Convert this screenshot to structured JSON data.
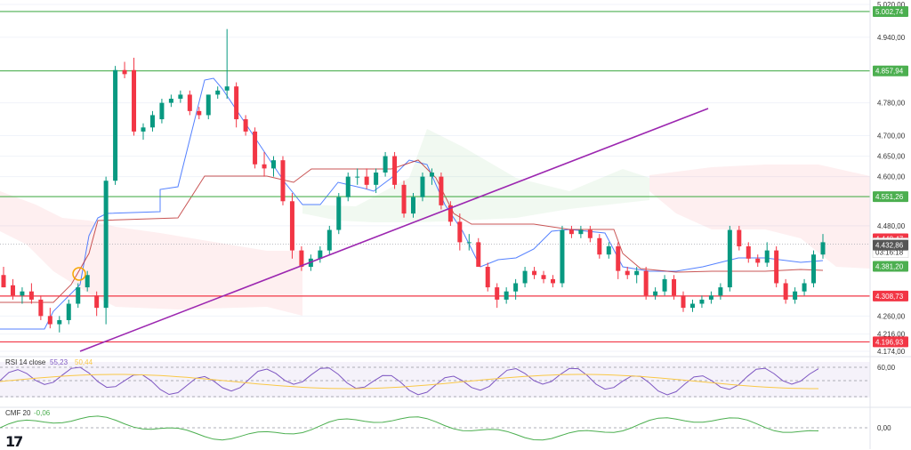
{
  "chart_data": {
    "type": "candlestick",
    "price_axis": {
      "ticks": [
        "5.020,00",
        "4.940,00",
        "4.780,00",
        "4.700,00",
        "4.650,00",
        "4.600,00",
        "4.480,00",
        "4.260,00",
        "4.216,00",
        "4.174,00"
      ],
      "ylim": [
        4174,
        5020
      ]
    },
    "horizontal_levels": [
      {
        "value": 5002.74,
        "label": "5.002,74",
        "color": "#4caf50"
      },
      {
        "value": 4857.94,
        "label": "4.857,94",
        "color": "#4caf50"
      },
      {
        "value": 4551.26,
        "label": "4.551,26",
        "color": "#4caf50"
      },
      {
        "value": 4308.73,
        "label": "4.308,73",
        "color": "#f23645"
      },
      {
        "value": 4196.93,
        "label": "4.196,93",
        "color": "#f23645"
      }
    ],
    "price_tags": [
      {
        "value": 4448.47,
        "label": "4.448,47",
        "color": "#f23645"
      },
      {
        "value": 4435.27,
        "label": "4.435,27",
        "sub": "03:16:18",
        "color": "#ffffff"
      },
      {
        "value": 4432.86,
        "label": "4.432,86",
        "color": "#555555"
      },
      {
        "value": 4381.2,
        "label": "4.381,20",
        "color": "#4caf50"
      }
    ],
    "candles": [
      [
        4360,
        4380,
        4330,
        4330
      ],
      [
        4335,
        4350,
        4300,
        4310
      ],
      [
        4310,
        4330,
        4290,
        4320
      ],
      [
        4320,
        4340,
        4290,
        4300
      ],
      [
        4300,
        4310,
        4250,
        4260
      ],
      [
        4260,
        4280,
        4230,
        4240
      ],
      [
        4240,
        4260,
        4220,
        4250
      ],
      [
        4250,
        4300,
        4240,
        4290
      ],
      [
        4290,
        4340,
        4280,
        4330
      ],
      [
        4330,
        4370,
        4320,
        4360
      ],
      [
        4310,
        4320,
        4260,
        4280
      ],
      [
        4280,
        4600,
        4240,
        4590
      ],
      [
        4590,
        4870,
        4580,
        4860
      ],
      [
        4860,
        4880,
        4840,
        4850
      ],
      [
        4860,
        4890,
        4700,
        4710
      ],
      [
        4710,
        4730,
        4690,
        4720
      ],
      [
        4720,
        4760,
        4710,
        4750
      ],
      [
        4740,
        4790,
        4730,
        4780
      ],
      [
        4780,
        4800,
        4770,
        4790
      ],
      [
        4790,
        4810,
        4780,
        4800
      ],
      [
        4800,
        4810,
        4750,
        4760
      ],
      [
        4760,
        4770,
        4740,
        4750
      ],
      [
        4750,
        4800,
        4740,
        4800
      ],
      [
        4800,
        4820,
        4790,
        4810
      ],
      [
        4810,
        4960,
        4790,
        4820
      ],
      [
        4820,
        4830,
        4720,
        4740
      ],
      [
        4740,
        4750,
        4700,
        4710
      ],
      [
        4710,
        4720,
        4620,
        4630
      ],
      [
        4630,
        4660,
        4600,
        4620
      ],
      [
        4620,
        4650,
        4600,
        4640
      ],
      [
        4640,
        4650,
        4530,
        4540
      ],
      [
        4540,
        4560,
        4400,
        4420
      ],
      [
        4420,
        4430,
        4370,
        4380
      ],
      [
        4380,
        4410,
        4370,
        4400
      ],
      [
        4400,
        4430,
        4390,
        4420
      ],
      [
        4420,
        4480,
        4410,
        4470
      ],
      [
        4470,
        4560,
        4460,
        4550
      ],
      [
        4550,
        4610,
        4540,
        4600
      ],
      [
        4600,
        4620,
        4580,
        4600
      ],
      [
        4600,
        4620,
        4570,
        4580
      ],
      [
        4580,
        4620,
        4560,
        4610
      ],
      [
        4610,
        4660,
        4600,
        4650
      ],
      [
        4650,
        4660,
        4570,
        4580
      ],
      [
        4580,
        4590,
        4500,
        4510
      ],
      [
        4510,
        4560,
        4500,
        4550
      ],
      [
        4550,
        4610,
        4540,
        4600
      ],
      [
        4600,
        4620,
        4580,
        4610
      ],
      [
        4600,
        4610,
        4520,
        4530
      ],
      [
        4530,
        4540,
        4480,
        4490
      ],
      [
        4490,
        4510,
        4420,
        4440
      ],
      [
        4440,
        4460,
        4420,
        4440
      ],
      [
        4440,
        4450,
        4380,
        4380
      ],
      [
        4380,
        4390,
        4320,
        4330
      ],
      [
        4330,
        4340,
        4280,
        4300
      ],
      [
        4300,
        4330,
        4290,
        4320
      ],
      [
        4320,
        4350,
        4300,
        4340
      ],
      [
        4340,
        4380,
        4330,
        4370
      ],
      [
        4370,
        4380,
        4350,
        4360
      ],
      [
        4360,
        4370,
        4340,
        4350
      ],
      [
        4350,
        4360,
        4330,
        4340
      ],
      [
        4340,
        4480,
        4330,
        4470
      ],
      [
        4470,
        4480,
        4450,
        4460
      ],
      [
        4460,
        4480,
        4450,
        4470
      ],
      [
        4470,
        4480,
        4440,
        4450
      ],
      [
        4450,
        4460,
        4400,
        4410
      ],
      [
        4410,
        4440,
        4400,
        4430
      ],
      [
        4430,
        4440,
        4350,
        4370
      ],
      [
        4370,
        4380,
        4350,
        4360
      ],
      [
        4360,
        4380,
        4340,
        4370
      ],
      [
        4370,
        4380,
        4300,
        4310
      ],
      [
        4310,
        4330,
        4300,
        4320
      ],
      [
        4320,
        4360,
        4310,
        4350
      ],
      [
        4350,
        4360,
        4300,
        4310
      ],
      [
        4310,
        4320,
        4270,
        4280
      ],
      [
        4280,
        4300,
        4270,
        4290
      ],
      [
        4290,
        4310,
        4280,
        4300
      ],
      [
        4300,
        4320,
        4290,
        4310
      ],
      [
        4310,
        4340,
        4300,
        4330
      ],
      [
        4330,
        4480,
        4320,
        4470
      ],
      [
        4470,
        4480,
        4420,
        4430
      ],
      [
        4430,
        4440,
        4390,
        4400
      ],
      [
        4400,
        4410,
        4380,
        4390
      ],
      [
        4390,
        4440,
        4380,
        4420
      ],
      [
        4420,
        4430,
        4330,
        4340
      ],
      [
        4340,
        4350,
        4290,
        4300
      ],
      [
        4300,
        4330,
        4290,
        4320
      ],
      [
        4320,
        4350,
        4310,
        4340
      ],
      [
        4340,
        4420,
        4330,
        4410
      ],
      [
        4410,
        4460,
        4400,
        4440
      ]
    ],
    "indicators": [
      {
        "name": "RSI 14 close",
        "values": [
          "55,23",
          "50,44"
        ],
        "axis_tick": "60,00"
      },
      {
        "name": "CMF 20",
        "values": [
          "-0,06"
        ],
        "axis_tick": "0,00"
      }
    ]
  }
}
